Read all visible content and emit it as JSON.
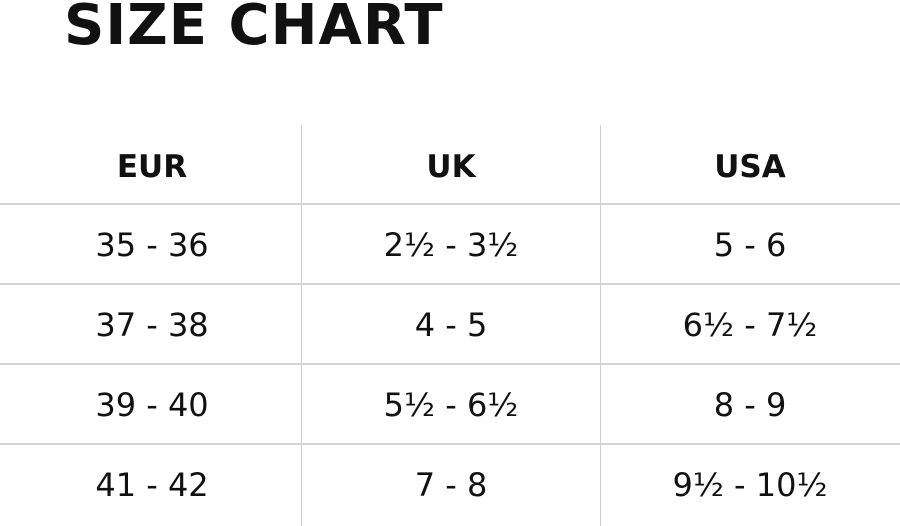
{
  "title": "SIZE CHART",
  "table": {
    "headers": [
      "EUR",
      "UK",
      "USA"
    ],
    "rows": [
      [
        "35 - 36",
        "2½ - 3½",
        "5 - 6"
      ],
      [
        "37 - 38",
        "4 - 5",
        "6½ - 7½"
      ],
      [
        "39 - 40",
        "5½ - 6½",
        "8 - 9"
      ],
      [
        "41 - 42",
        "7 - 8",
        "9½ - 10½"
      ]
    ]
  }
}
